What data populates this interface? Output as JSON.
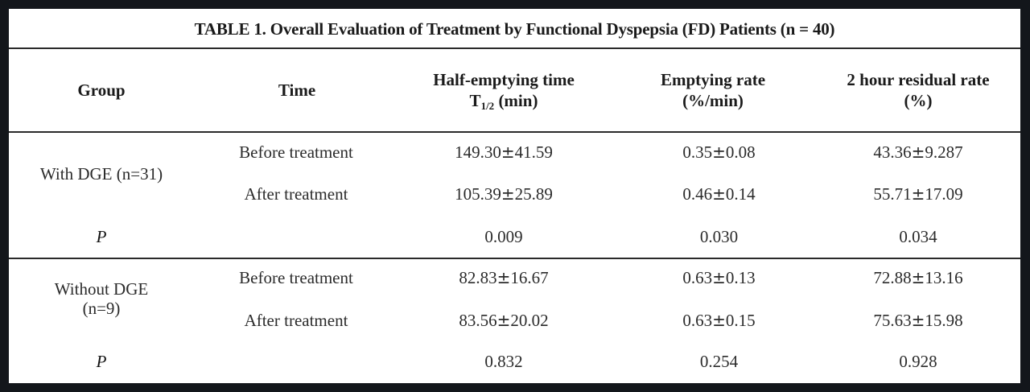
{
  "table": {
    "title": "TABLE 1. Overall Evaluation of Treatment by Functional Dyspepsia (FD)  Patients (n = 40)",
    "headers": {
      "group": "Group",
      "time": "Time",
      "half_emptying_line1": "Half-emptying time",
      "half_emptying_line2_prefix": "T",
      "half_emptying_sub": "1/2",
      "half_emptying_line2_suffix": " (min)",
      "emptying_rate_line1": "Emptying rate",
      "emptying_rate_line2": "(%/min)",
      "residual_line1": "2 hour residual rate",
      "residual_line2": "(%)"
    },
    "pm_symbol": "±",
    "groups": [
      {
        "group_label_line1": "With DGE (n=31)",
        "group_label_line2": "",
        "rows": [
          {
            "time": "Before treatment",
            "half_emptying": {
              "mean": "149.30",
              "sd": "41.59"
            },
            "emptying_rate": {
              "mean": "0.35",
              "sd": "0.08"
            },
            "residual": {
              "mean": "43.36",
              "sd": "9.287"
            }
          },
          {
            "time": "After treatment",
            "half_emptying": {
              "mean": "105.39",
              "sd": "25.89"
            },
            "emptying_rate": {
              "mean": "0.46",
              "sd": "0.14"
            },
            "residual": {
              "mean": "55.71",
              "sd": "17.09"
            }
          }
        ],
        "p_label": "P",
        "p_values": {
          "half_emptying": "0.009",
          "emptying_rate": "0.030",
          "residual": "0.034"
        }
      },
      {
        "group_label_line1": "Without DGE",
        "group_label_line2": "(n=9)",
        "rows": [
          {
            "time": "Before treatment",
            "half_emptying": {
              "mean": "82.83",
              "sd": "16.67"
            },
            "emptying_rate": {
              "mean": "0.63",
              "sd": "0.13"
            },
            "residual": {
              "mean": "72.88",
              "sd": "13.16"
            }
          },
          {
            "time": "After treatment",
            "half_emptying": {
              "mean": "83.56",
              "sd": "20.02"
            },
            "emptying_rate": {
              "mean": "0.63",
              "sd": "0.15"
            },
            "residual": {
              "mean": "75.63",
              "sd": "15.98"
            }
          }
        ],
        "p_label": "P",
        "p_values": {
          "half_emptying": "0.832",
          "emptying_rate": "0.254",
          "residual": "0.928"
        }
      }
    ]
  }
}
